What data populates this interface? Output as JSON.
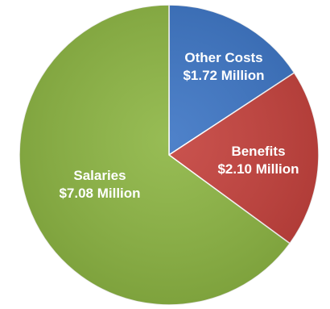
{
  "chart_data": {
    "type": "pie",
    "title": "",
    "start_angle_deg": 0,
    "direction": "clockwise",
    "slices": [
      {
        "name": "Other Costs",
        "value": 1.72,
        "value_label": "$1.72 Million",
        "color": "#3b74c4"
      },
      {
        "name": "Benefits",
        "value": 2.1,
        "value_label": "$2.10 Million",
        "color": "#c4403b"
      },
      {
        "name": "Salaries",
        "value": 7.08,
        "value_label": "$7.08 Million",
        "color": "#8cb542"
      }
    ]
  }
}
